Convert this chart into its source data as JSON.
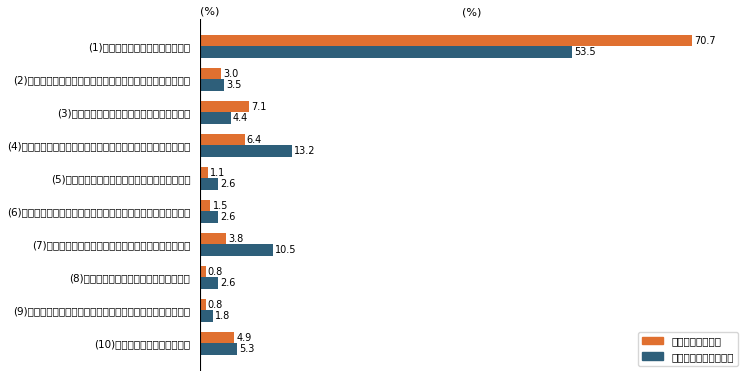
{
  "categories": [
    "(1)今の会社で同じ職種で働きたい",
    "(2)今の会社で部署の異動、地域の異動、職種の転換をしたい",
    "(3)今の会社で正規雇用の社員として働きたい",
    "(4)転職して違う会社でパート・アルバイト社員として働きたい",
    "(5)転職して違う会社で派遣社員として働きたい",
    "(6)転職して違う会社で契約社員または嘱託社員として働きたい",
    "(7)転職して違う会社の正規雇用の社員として働きたい",
    "(8)退職してフリーランスとして働きたい",
    "(9)退職して個人事業主として働きたい、あるいは起業したい",
    "(10)退職してしばらく働かない"
  ],
  "orange_values": [
    70.7,
    3.0,
    7.1,
    6.4,
    1.1,
    1.5,
    3.8,
    0.8,
    0.8,
    4.9
  ],
  "blue_values": [
    53.5,
    3.5,
    4.4,
    13.2,
    2.6,
    2.6,
    10.5,
    2.6,
    1.8,
    5.3
  ],
  "orange_color": "#E07030",
  "blue_color": "#2E5F7A",
  "orange_label": "無期転換非正社員",
  "blue_label": "権利あり有期非正社員",
  "xlabel": "(%)",
  "xlim": [
    0,
    78
  ],
  "bar_height": 0.35,
  "fontsize": 8,
  "label_fontsize": 7.5,
  "value_fontsize": 7
}
